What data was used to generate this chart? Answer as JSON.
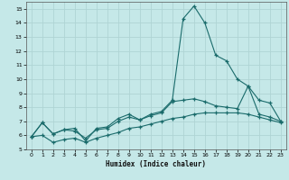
{
  "xlabel": "Humidex (Indice chaleur)",
  "background_color": "#c5e8e8",
  "grid_color": "#afd4d4",
  "line_color": "#1a6b6b",
  "xlim": [
    -0.5,
    23.5
  ],
  "ylim": [
    5,
    15.5
  ],
  "yticks": [
    5,
    6,
    7,
    8,
    9,
    10,
    11,
    12,
    13,
    14,
    15
  ],
  "xticks": [
    0,
    1,
    2,
    3,
    4,
    5,
    6,
    7,
    8,
    9,
    10,
    11,
    12,
    13,
    14,
    15,
    16,
    17,
    18,
    19,
    20,
    21,
    22,
    23
  ],
  "line1_x": [
    0,
    1,
    2,
    3,
    4,
    5,
    6,
    7,
    8,
    9,
    10,
    11,
    12,
    13,
    14,
    15,
    16,
    17,
    18,
    19,
    20,
    21,
    22,
    23
  ],
  "line1_y": [
    5.9,
    6.9,
    6.1,
    6.4,
    6.5,
    5.6,
    6.5,
    6.6,
    7.2,
    7.5,
    7.1,
    7.5,
    7.7,
    8.5,
    14.3,
    15.2,
    14.0,
    11.7,
    11.3,
    10.0,
    9.5,
    8.5,
    8.3,
    7.0
  ],
  "line2_x": [
    0,
    1,
    2,
    3,
    4,
    5,
    6,
    7,
    8,
    9,
    10,
    11,
    12,
    13,
    14,
    15,
    16,
    17,
    18,
    19,
    20,
    21,
    22,
    23
  ],
  "line2_y": [
    5.9,
    6.9,
    6.1,
    6.4,
    6.3,
    5.8,
    6.4,
    6.5,
    7.0,
    7.3,
    7.1,
    7.4,
    7.6,
    8.4,
    8.5,
    8.6,
    8.4,
    8.1,
    8.0,
    7.9,
    9.5,
    7.5,
    7.3,
    7.0
  ],
  "line3_x": [
    0,
    1,
    2,
    3,
    4,
    5,
    6,
    7,
    8,
    9,
    10,
    11,
    12,
    13,
    14,
    15,
    16,
    17,
    18,
    19,
    20,
    21,
    22,
    23
  ],
  "line3_y": [
    5.9,
    6.0,
    5.5,
    5.7,
    5.8,
    5.5,
    5.8,
    6.0,
    6.2,
    6.5,
    6.6,
    6.8,
    7.0,
    7.2,
    7.3,
    7.5,
    7.6,
    7.6,
    7.6,
    7.6,
    7.5,
    7.3,
    7.1,
    6.9
  ]
}
